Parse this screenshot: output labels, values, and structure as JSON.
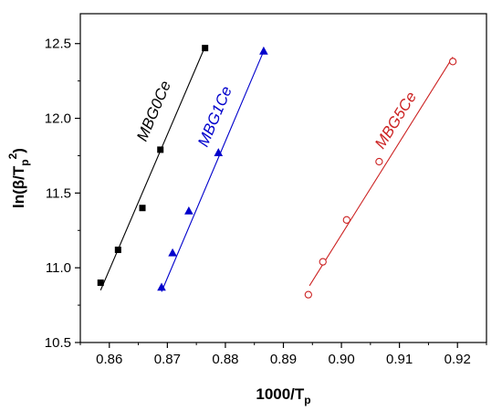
{
  "chart_data": {
    "type": "scatter",
    "xlabel": "1000/T",
    "xlabel_sub": "p",
    "ylabel_parts": [
      "ln(β/T",
      "p",
      "2",
      ")"
    ],
    "xlim": [
      0.855,
      0.925
    ],
    "ylim": [
      10.5,
      12.7
    ],
    "xticks": [
      0.86,
      0.87,
      0.88,
      0.89,
      0.9,
      0.91,
      0.92
    ],
    "yticks": [
      10.5,
      11.0,
      11.5,
      12.0,
      12.5
    ],
    "xtick_labels": [
      "0.86",
      "0.87",
      "0.88",
      "0.89",
      "0.90",
      "0.91",
      "0.92"
    ],
    "ytick_labels": [
      "10.5",
      "11.0",
      "11.5",
      "12.0",
      "12.5"
    ],
    "grid": false,
    "legend": "inline labels next to each series",
    "series": [
      {
        "name": "MBG0Ce",
        "marker": "filled-square",
        "color": "#000000",
        "x": [
          0.8585,
          0.8615,
          0.8657,
          0.8688,
          0.8765
        ],
        "y": [
          10.9,
          11.12,
          11.4,
          11.79,
          12.47
        ],
        "fit": {
          "x": [
            0.8585,
            0.8765
          ],
          "y": [
            10.85,
            12.48
          ]
        }
      },
      {
        "name": "MBG1Ce",
        "marker": "filled-triangle",
        "color": "#0000cc",
        "x": [
          0.869,
          0.8709,
          0.8737,
          0.8788,
          0.8866
        ],
        "y": [
          10.87,
          11.1,
          11.38,
          11.77,
          12.45
        ],
        "fit": {
          "x": [
            0.869,
            0.8866
          ],
          "y": [
            10.84,
            12.45
          ]
        }
      },
      {
        "name": "MBG5Ce",
        "marker": "open-circle",
        "color": "#cc2222",
        "x": [
          0.8943,
          0.8968,
          0.9009,
          0.9065,
          0.9192
        ],
        "y": [
          10.82,
          11.04,
          11.32,
          11.71,
          12.38
        ],
        "fit": {
          "x": [
            0.8945,
            0.9192
          ],
          "y": [
            10.88,
            12.41
          ]
        }
      }
    ]
  }
}
